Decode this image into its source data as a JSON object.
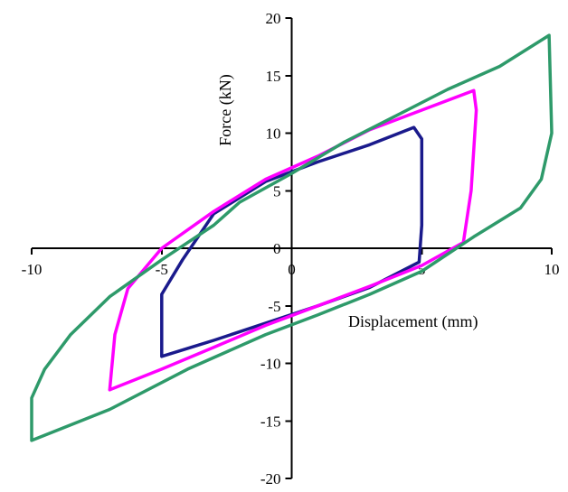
{
  "chart_data": {
    "type": "line",
    "title": "",
    "xlabel": "Displacement (mm)",
    "ylabel": "Force (kN)",
    "xlim": [
      -10,
      10
    ],
    "ylim": [
      -20,
      20
    ],
    "grid": false,
    "legend": "none",
    "x_ticks": [
      -10,
      -5,
      0,
      5,
      10
    ],
    "y_ticks": [
      -20,
      -15,
      -10,
      -5,
      0,
      5,
      10,
      15,
      20
    ],
    "x_tick_labels": [
      "-10",
      "-5",
      "0",
      "5",
      "10"
    ],
    "y_tick_labels": [
      "-20",
      "-15",
      "-10",
      "-5",
      "0",
      "5",
      "10",
      "15",
      "20"
    ],
    "series": [
      {
        "color": "#1a1a8c",
        "points": [
          [
            -5.0,
            -9.4
          ],
          [
            -3.0,
            -8.0
          ],
          [
            -1.0,
            -6.5
          ],
          [
            1.0,
            -5.0
          ],
          [
            3.0,
            -3.4
          ],
          [
            4.9,
            -1.2
          ],
          [
            5.0,
            2.0
          ],
          [
            5.0,
            9.5
          ],
          [
            4.7,
            10.5
          ],
          [
            3.0,
            9.0
          ],
          [
            1.0,
            7.5
          ],
          [
            -1.0,
            5.8
          ],
          [
            -3.0,
            3.0
          ],
          [
            -4.2,
            -1.0
          ],
          [
            -5.0,
            -4.0
          ],
          [
            -5.0,
            -9.4
          ]
        ]
      },
      {
        "color": "#ff00ff",
        "points": [
          [
            -7.0,
            -12.3
          ],
          [
            -5.0,
            -10.5
          ],
          [
            -3.0,
            -8.6
          ],
          [
            -1.0,
            -6.7
          ],
          [
            1.0,
            -5.0
          ],
          [
            3.0,
            -3.3
          ],
          [
            5.0,
            -1.5
          ],
          [
            6.6,
            0.5
          ],
          [
            6.9,
            5.0
          ],
          [
            7.1,
            12.0
          ],
          [
            7.0,
            13.7
          ],
          [
            5.0,
            12.0
          ],
          [
            3.0,
            10.3
          ],
          [
            1.0,
            8.0
          ],
          [
            -1.0,
            6.0
          ],
          [
            -3.0,
            3.2
          ],
          [
            -5.0,
            0.0
          ],
          [
            -6.3,
            -3.5
          ],
          [
            -6.8,
            -7.5
          ],
          [
            -7.0,
            -12.3
          ]
        ]
      },
      {
        "color": "#2e9a6a",
        "points": [
          [
            -10.0,
            -16.7
          ],
          [
            -7.0,
            -14.0
          ],
          [
            -4.0,
            -10.5
          ],
          [
            -1.0,
            -7.5
          ],
          [
            1.0,
            -5.8
          ],
          [
            3.0,
            -4.0
          ],
          [
            5.0,
            -2.0
          ],
          [
            7.0,
            1.0
          ],
          [
            8.8,
            3.5
          ],
          [
            9.6,
            6.0
          ],
          [
            10.0,
            10.0
          ],
          [
            9.9,
            18.5
          ],
          [
            8.0,
            15.8
          ],
          [
            6.0,
            13.8
          ],
          [
            4.0,
            11.5
          ],
          [
            2.0,
            9.2
          ],
          [
            0.0,
            6.5
          ],
          [
            -2.0,
            4.0
          ],
          [
            -3.0,
            2.0
          ],
          [
            -5.0,
            -1.0
          ],
          [
            -7.0,
            -4.2
          ],
          [
            -8.5,
            -7.5
          ],
          [
            -9.5,
            -10.5
          ],
          [
            -10.0,
            -13.0
          ],
          [
            -10.0,
            -16.7
          ]
        ]
      }
    ]
  }
}
